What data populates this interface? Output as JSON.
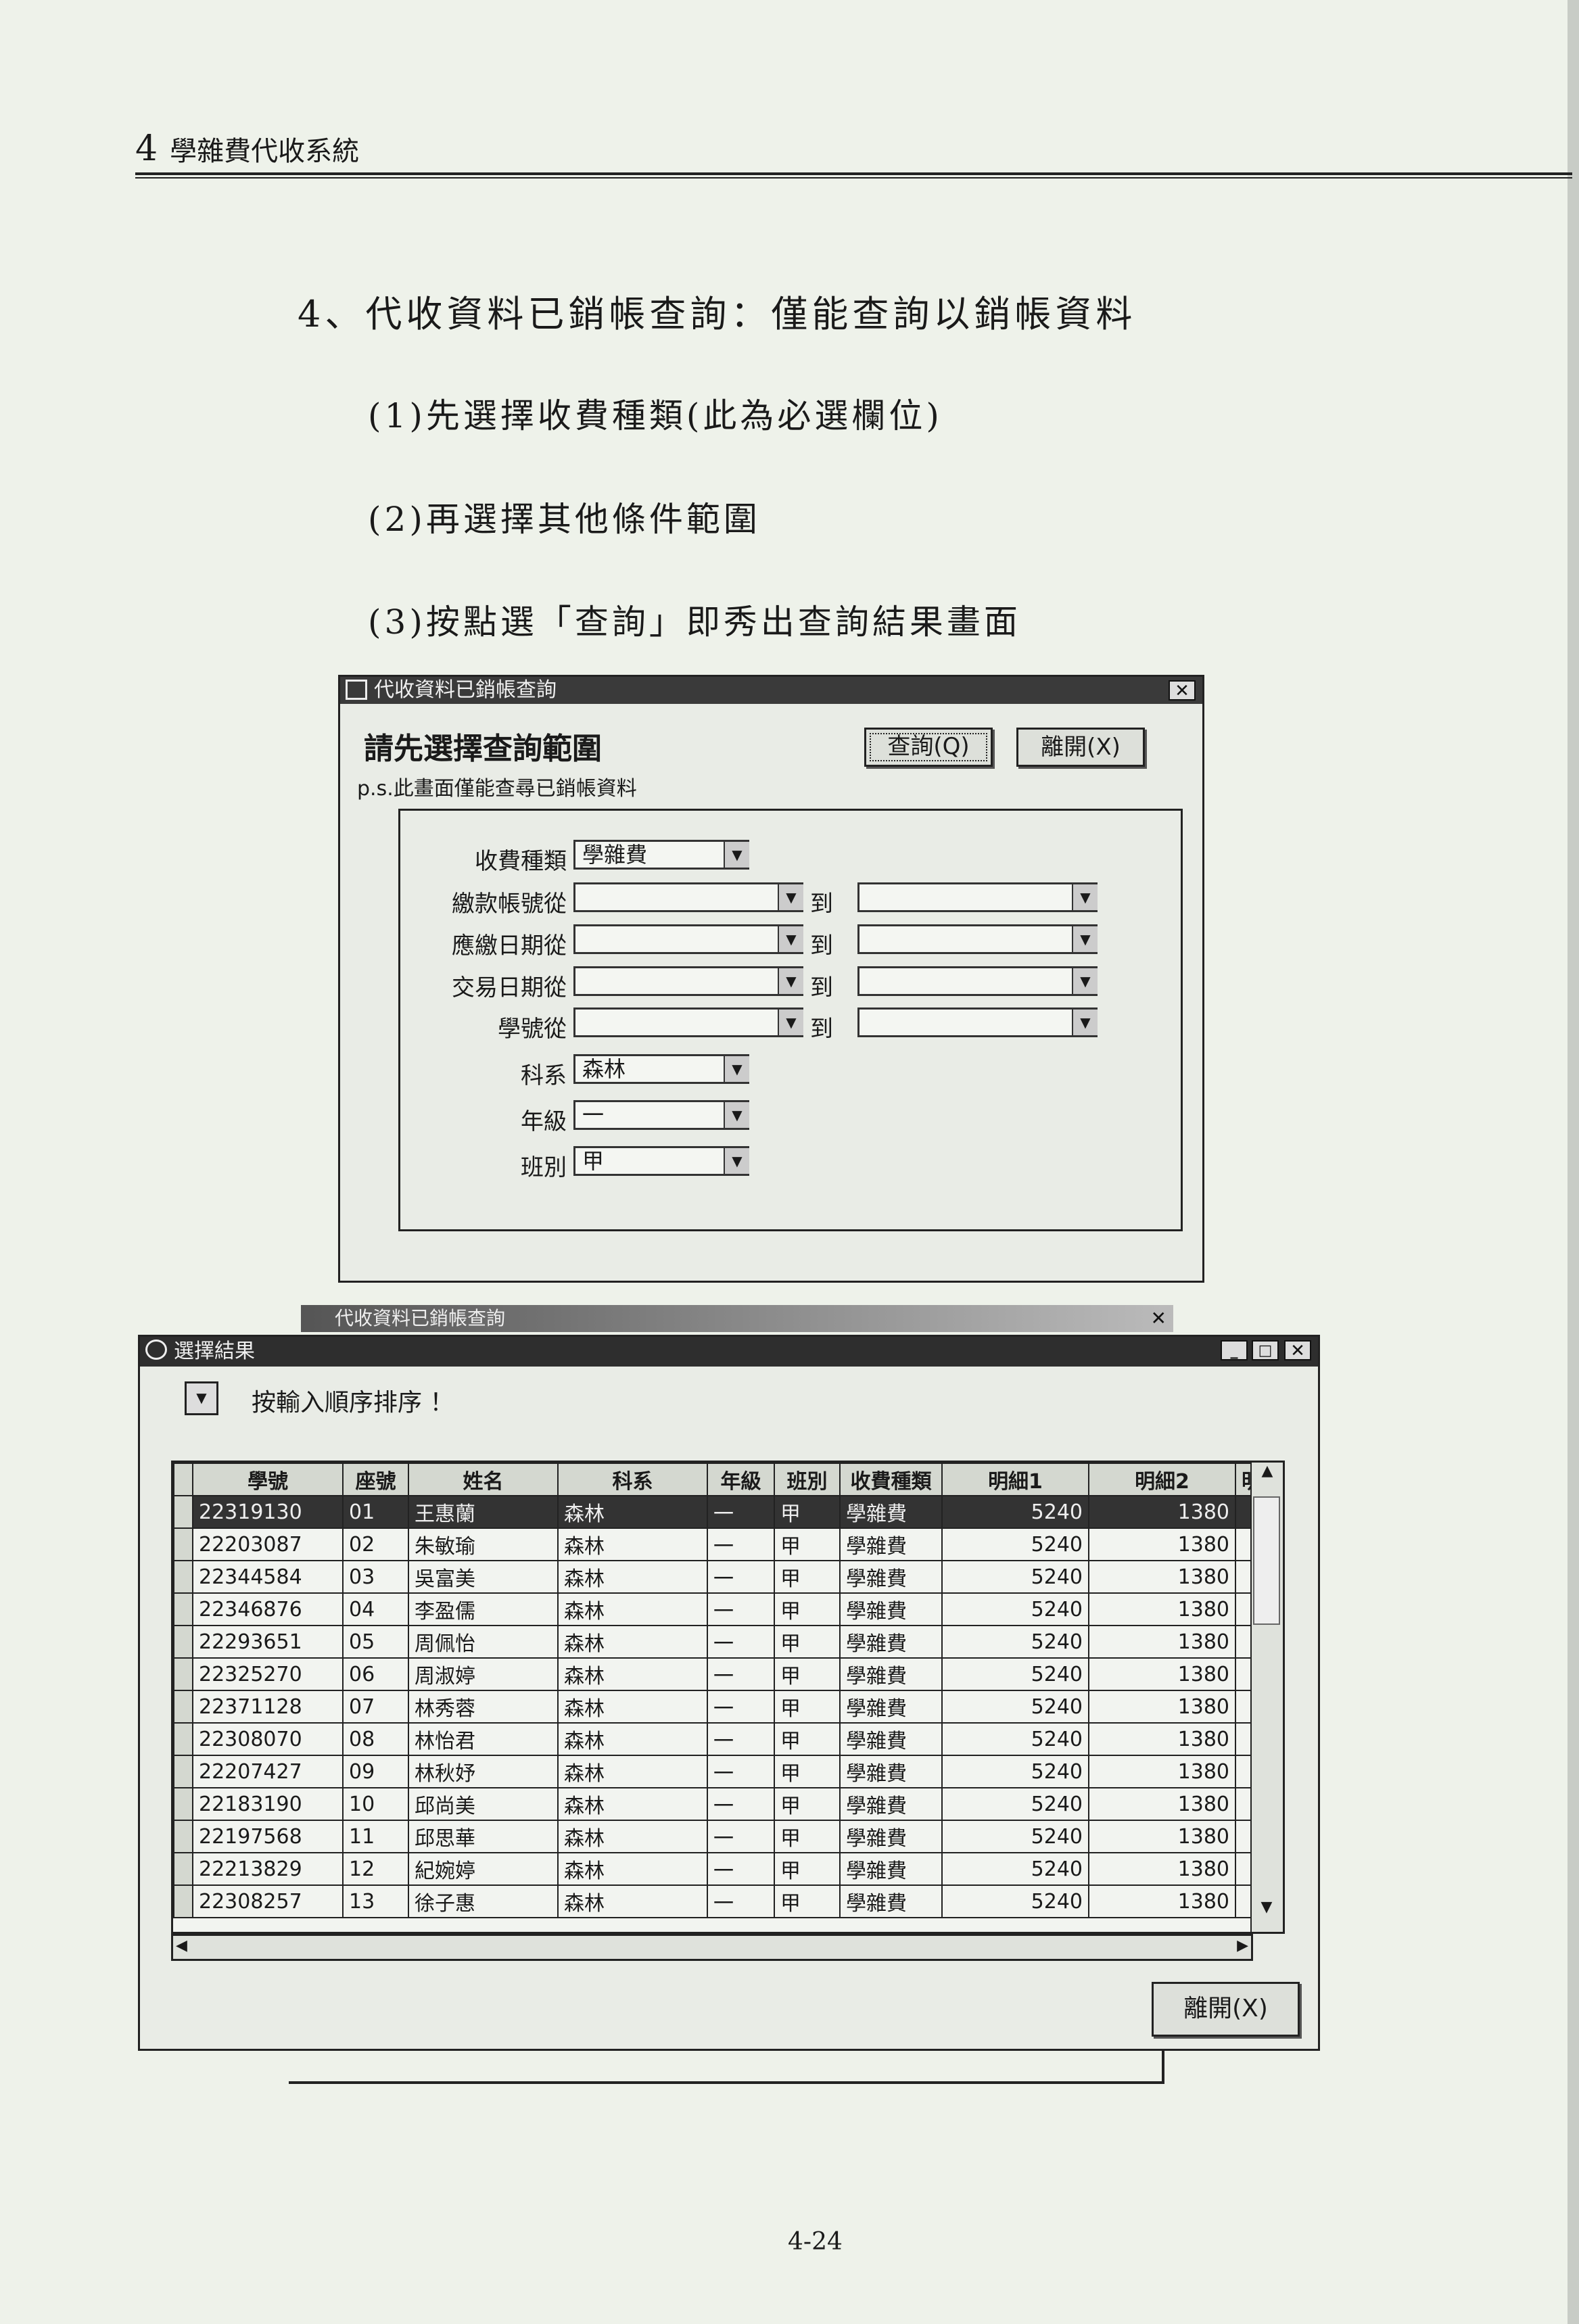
{
  "header": {
    "chapter_num": "4",
    "chapter_title": "學雜費代收系統"
  },
  "section": {
    "heading": "4、代收資料已銷帳查詢：僅能查詢以銷帳資料",
    "steps": [
      "(1)先選擇收費種類(此為必選欄位)",
      "(2)再選擇其他條件範圍",
      "(3)按點選「查詢」即秀出查詢結果畫面"
    ]
  },
  "query_dialog": {
    "title": "代收資料已銷帳查詢",
    "heading": "請先選擇查詢範圍",
    "note": "p.s.此畫面僅能查尋已銷帳資料",
    "query_button": "查詢(Q)",
    "exit_button": "離開(X)",
    "to_label": "到",
    "fields": [
      {
        "label": "收費種類",
        "value": "學雜費"
      },
      {
        "label": "繳款帳號從",
        "value": ""
      },
      {
        "label": "應繳日期從",
        "value": ""
      },
      {
        "label": "交易日期從",
        "value": ""
      },
      {
        "label": "學號從",
        "value": ""
      },
      {
        "label": "科系",
        "value": "森林"
      },
      {
        "label": "年級",
        "value": "一"
      },
      {
        "label": "班別",
        "value": "甲"
      }
    ]
  },
  "back_window": {
    "title": "代收資料已銷帳查詢"
  },
  "result_window": {
    "title": "選擇結果",
    "sort_label": "按輸入順序排序 ！",
    "exit_button": "離開(X)",
    "columns": [
      "學號",
      "座號",
      "姓名",
      "科系",
      "年級",
      "班別",
      "收費種類",
      "明細1",
      "明細2",
      "明"
    ],
    "rows": [
      [
        "22319130",
        "01",
        "王惠蘭",
        "森林",
        "一",
        "甲",
        "學雜費",
        "5240",
        "1380"
      ],
      [
        "22203087",
        "02",
        "朱敏瑜",
        "森林",
        "一",
        "甲",
        "學雜費",
        "5240",
        "1380"
      ],
      [
        "22344584",
        "03",
        "吳富美",
        "森林",
        "一",
        "甲",
        "學雜費",
        "5240",
        "1380"
      ],
      [
        "22346876",
        "04",
        "李盈儒",
        "森林",
        "一",
        "甲",
        "學雜費",
        "5240",
        "1380"
      ],
      [
        "22293651",
        "05",
        "周佩怡",
        "森林",
        "一",
        "甲",
        "學雜費",
        "5240",
        "1380"
      ],
      [
        "22325270",
        "06",
        "周淑婷",
        "森林",
        "一",
        "甲",
        "學雜費",
        "5240",
        "1380"
      ],
      [
        "22371128",
        "07",
        "林秀蓉",
        "森林",
        "一",
        "甲",
        "學雜費",
        "5240",
        "1380"
      ],
      [
        "22308070",
        "08",
        "林怡君",
        "森林",
        "一",
        "甲",
        "學雜費",
        "5240",
        "1380"
      ],
      [
        "22207427",
        "09",
        "林秋妤",
        "森林",
        "一",
        "甲",
        "學雜費",
        "5240",
        "1380"
      ],
      [
        "22183190",
        "10",
        "邱尚美",
        "森林",
        "一",
        "甲",
        "學雜費",
        "5240",
        "1380"
      ],
      [
        "22197568",
        "11",
        "邱思華",
        "森林",
        "一",
        "甲",
        "學雜費",
        "5240",
        "1380"
      ],
      [
        "22213829",
        "12",
        "紀婉婷",
        "森林",
        "一",
        "甲",
        "學雜費",
        "5240",
        "1380"
      ],
      [
        "22308257",
        "13",
        "徐子惠",
        "森林",
        "一",
        "甲",
        "學雜費",
        "5240",
        "1380"
      ]
    ],
    "selected_row": 0
  },
  "footer": {
    "page_number": "4-24"
  }
}
